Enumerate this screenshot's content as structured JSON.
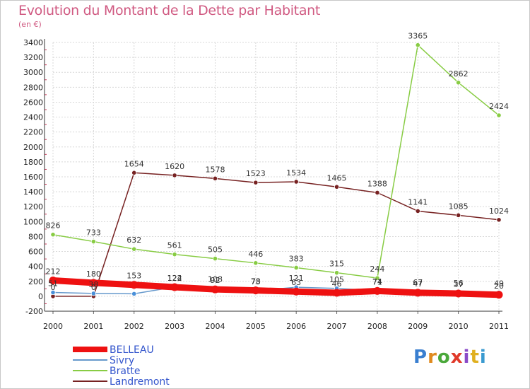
{
  "title": "Evolution du Montant de la Dette par Habitant",
  "subtitle": "(en €)",
  "logo": {
    "letters": [
      "P",
      "r",
      "o",
      "x",
      "i",
      "t",
      "i"
    ],
    "colors": [
      "#3a7fd0",
      "#e08a1e",
      "#4aa83a",
      "#e03a2a",
      "#8a4ac8",
      "#e0b020",
      "#3a9ad0"
    ]
  },
  "chart_data": {
    "type": "line",
    "x": [
      "2000",
      "2001",
      "2002",
      "2003",
      "2004",
      "2005",
      "2006",
      "2007",
      "2008",
      "2009",
      "2010",
      "2011"
    ],
    "ylim": [
      -200,
      3400
    ],
    "yticks": [
      -200,
      0,
      200,
      400,
      600,
      800,
      1000,
      1200,
      1400,
      1600,
      1800,
      2000,
      2200,
      2400,
      2600,
      2800,
      3000,
      3200,
      3400
    ],
    "grid": true,
    "legend_position": "bottom-left",
    "series": [
      {
        "name": "BELLEAU",
        "color": "#ee1111",
        "values": [
          212,
          180,
          153,
          122,
          92,
          78,
          63,
          46,
          71,
          47,
          37,
          20
        ],
        "labels": [
          "212",
          "180",
          "153",
          "122",
          "92",
          "78",
          "63",
          "46",
          "71",
          "47",
          "37",
          "20"
        ]
      },
      {
        "name": "Sivry",
        "color": "#6699cc",
        "values": [
          51,
          38,
          33,
          124,
          108,
          73,
          121,
          105,
          74,
          67,
          56,
          49
        ],
        "labels": [
          "51",
          "38",
          "",
          "124",
          "108",
          "73",
          "121",
          "105",
          "74",
          "67",
          "56",
          "49"
        ]
      },
      {
        "name": "Bratte",
        "color": "#88cc44",
        "values": [
          826,
          733,
          632,
          561,
          505,
          446,
          383,
          315,
          244,
          3365,
          2862,
          2424
        ],
        "labels": [
          "826",
          "733",
          "632",
          "561",
          "505",
          "446",
          "383",
          "315",
          "244",
          "3365",
          "2862",
          "2424"
        ]
      },
      {
        "name": "Landremont",
        "color": "#772222",
        "values": [
          0,
          0,
          1654,
          1620,
          1578,
          1523,
          1534,
          1465,
          1388,
          1141,
          1085,
          1024
        ],
        "labels": [
          "0",
          "0",
          "1654",
          "1620",
          "1578",
          "1523",
          "1534",
          "1465",
          "1388",
          "1141",
          "1085",
          "1024"
        ]
      }
    ]
  }
}
